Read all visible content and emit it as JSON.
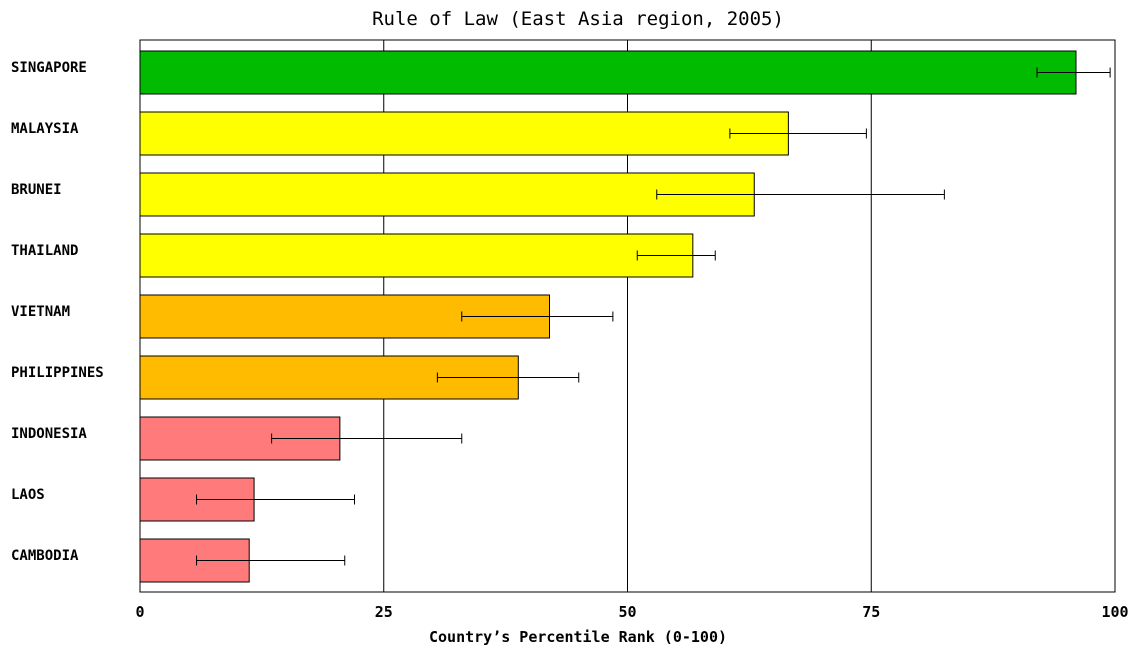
{
  "chart_data": {
    "type": "bar",
    "orientation": "horizontal",
    "title": "Rule of Law (East Asia region, 2005)",
    "xlabel": "Country’s Percentile Rank (0-100)",
    "ylabel": "",
    "xlim": [
      0,
      100
    ],
    "ticks": [
      0,
      25,
      50,
      75,
      100
    ],
    "grid": true,
    "categories": [
      "SINGAPORE",
      "MALAYSIA",
      "BRUNEI",
      "THAILAND",
      "VIETNAM",
      "PHILIPPINES",
      "INDONESIA",
      "LAOS",
      "CAMBODIA"
    ],
    "values": [
      96.0,
      66.5,
      63.0,
      56.7,
      42.0,
      38.8,
      20.5,
      11.7,
      11.2
    ],
    "error_low": [
      92.0,
      60.5,
      53.0,
      51.0,
      33.0,
      30.5,
      13.5,
      5.8,
      5.8
    ],
    "error_high": [
      99.5,
      74.5,
      82.5,
      59.0,
      48.5,
      45.0,
      33.0,
      22.0,
      21.0
    ],
    "colors": [
      "#00bb00",
      "#ffff00",
      "#ffff00",
      "#ffff00",
      "#ffbb00",
      "#ffbb00",
      "#ff7b7b",
      "#ff7b7b",
      "#ff7b7b"
    ]
  }
}
